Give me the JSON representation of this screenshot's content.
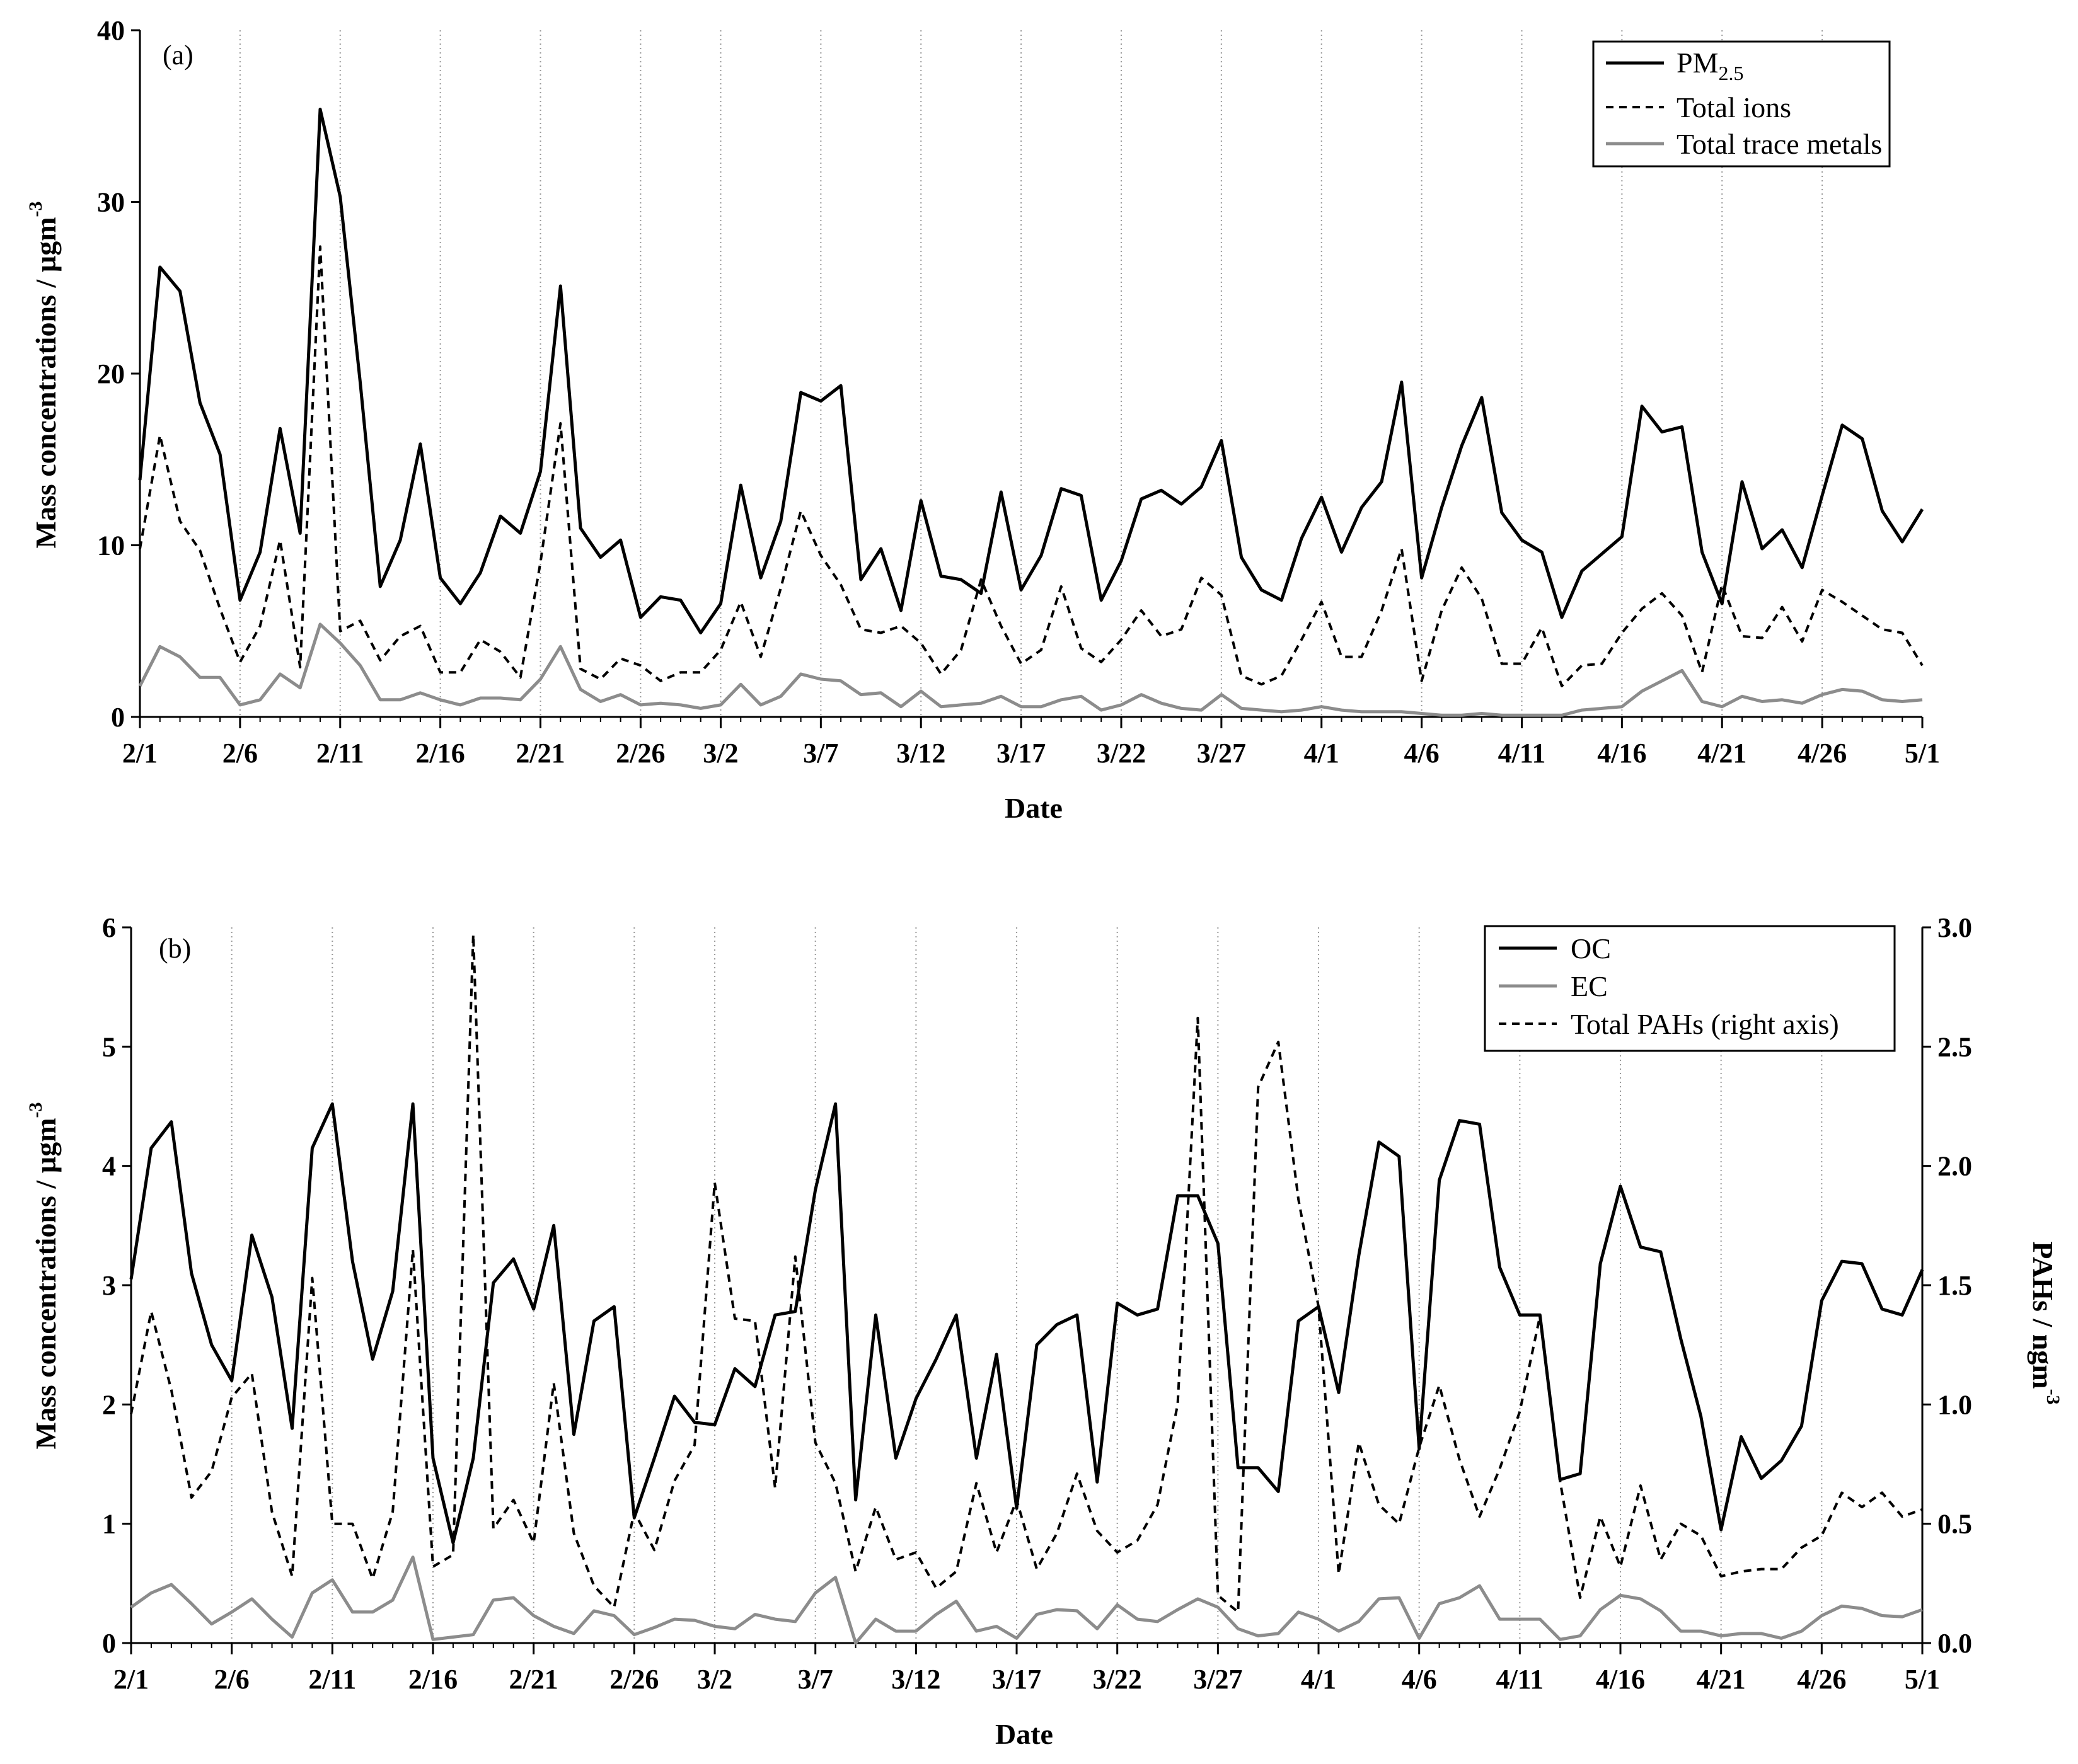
{
  "chart_data": [
    {
      "id": "a",
      "type": "line",
      "panel_label": "(a)",
      "xlabel": "Date",
      "ylabel": "Mass concentrations / µgm",
      "ylabel_superscript": "-3",
      "ylim": [
        0,
        40
      ],
      "yticks": [
        0,
        10,
        20,
        30,
        40
      ],
      "x_start": "2/1",
      "x_end": "5/1",
      "xticks": [
        {
          "day": 0,
          "label": "2/1"
        },
        {
          "day": 5,
          "label": "2/6"
        },
        {
          "day": 10,
          "label": "2/11"
        },
        {
          "day": 15,
          "label": "2/16"
        },
        {
          "day": 20,
          "label": "2/21"
        },
        {
          "day": 25,
          "label": "2/26"
        },
        {
          "day": 29,
          "label": "3/2"
        },
        {
          "day": 34,
          "label": "3/7"
        },
        {
          "day": 39,
          "label": "3/12"
        },
        {
          "day": 44,
          "label": "3/17"
        },
        {
          "day": 49,
          "label": "3/22"
        },
        {
          "day": 54,
          "label": "3/27"
        },
        {
          "day": 59,
          "label": "4/1"
        },
        {
          "day": 64,
          "label": "4/6"
        },
        {
          "day": 69,
          "label": "4/11"
        },
        {
          "day": 74,
          "label": "4/16"
        },
        {
          "day": 79,
          "label": "4/21"
        },
        {
          "day": 84,
          "label": "4/26"
        },
        {
          "day": 89,
          "label": "5/1"
        }
      ],
      "legend_position": "top-right",
      "series": [
        {
          "name": "PM",
          "subscript": "2.5",
          "style": "solid",
          "color": "#000000",
          "values": [
            13.8,
            26.2,
            24.8,
            18.3,
            15.3,
            6.8,
            9.6,
            16.8,
            10.7,
            35.4,
            30.3,
            19.5,
            7.6,
            10.3,
            15.9,
            8.1,
            6.6,
            8.4,
            11.7,
            10.7,
            14.3,
            25.1,
            11.0,
            9.3,
            10.3,
            5.8,
            7.0,
            6.8,
            4.9,
            6.6,
            13.5,
            8.1,
            11.4,
            18.9,
            18.4,
            19.3,
            8.0,
            9.8,
            6.2,
            12.6,
            8.2,
            8.0,
            7.2,
            13.1,
            7.4,
            9.4,
            13.3,
            12.9,
            6.8,
            9.1,
            12.7,
            13.2,
            12.4,
            13.4,
            16.1,
            9.3,
            7.4,
            6.8,
            10.4,
            12.8,
            9.6,
            12.2,
            13.7,
            19.5,
            8.1,
            12.2,
            15.8,
            18.6,
            11.9,
            10.3,
            9.6,
            5.8,
            8.5,
            9.5,
            10.5,
            18.1,
            16.6,
            16.9,
            9.6,
            6.6,
            13.7,
            9.8,
            10.9,
            8.7,
            12.9,
            17.0,
            16.2,
            12.0,
            10.2,
            12.1
          ]
        },
        {
          "name": "Total ions",
          "style": "dashed",
          "color": "#000000",
          "values": [
            9.8,
            16.4,
            11.4,
            9.7,
            6.3,
            3.2,
            5.3,
            10.3,
            2.9,
            27.4,
            5.0,
            5.6,
            3.3,
            4.7,
            5.3,
            2.6,
            2.6,
            4.5,
            3.8,
            2.3,
            9.0,
            17.1,
            2.8,
            2.2,
            3.4,
            3.0,
            2.1,
            2.6,
            2.6,
            3.9,
            6.7,
            3.5,
            7.5,
            12.0,
            9.4,
            7.7,
            5.1,
            4.9,
            5.3,
            4.3,
            2.5,
            3.9,
            8.0,
            5.3,
            3.1,
            3.9,
            7.6,
            4.0,
            3.2,
            4.5,
            6.2,
            4.7,
            5.1,
            8.1,
            7.1,
            2.4,
            1.9,
            2.4,
            4.5,
            6.7,
            3.5,
            3.5,
            6.2,
            9.8,
            2.1,
            6.2,
            8.7,
            6.9,
            3.1,
            3.1,
            5.2,
            1.8,
            3.0,
            3.1,
            4.9,
            6.3,
            7.2,
            5.9,
            2.6,
            7.7,
            4.7,
            4.6,
            6.4,
            4.4,
            7.4,
            6.7,
            5.9,
            5.1,
            4.9,
            3.0
          ]
        },
        {
          "name": "Total trace metals",
          "style": "solid",
          "color": "#8c8c8c",
          "values": [
            1.8,
            4.1,
            3.5,
            2.3,
            2.3,
            0.7,
            1.0,
            2.5,
            1.7,
            5.4,
            4.3,
            3.0,
            1.0,
            1.0,
            1.4,
            1.0,
            0.7,
            1.1,
            1.1,
            1.0,
            2.2,
            4.1,
            1.6,
            0.9,
            1.3,
            0.7,
            0.8,
            0.7,
            0.5,
            0.7,
            1.9,
            0.7,
            1.2,
            2.5,
            2.2,
            2.1,
            1.3,
            1.4,
            0.6,
            1.5,
            0.6,
            0.7,
            0.8,
            1.2,
            0.6,
            0.6,
            1.0,
            1.2,
            0.4,
            0.7,
            1.3,
            0.8,
            0.5,
            0.4,
            1.3,
            0.5,
            0.4,
            0.3,
            0.4,
            0.6,
            0.4,
            0.3,
            0.3,
            0.3,
            0.2,
            0.1,
            0.1,
            0.2,
            0.1,
            0.1,
            0.1,
            0.1,
            0.4,
            0.5,
            0.6,
            1.5,
            2.1,
            2.7,
            0.9,
            0.6,
            1.2,
            0.9,
            1.0,
            0.8,
            1.3,
            1.6,
            1.5,
            1.0,
            0.9,
            1.0
          ]
        }
      ]
    },
    {
      "id": "b",
      "type": "line",
      "panel_label": "(b)",
      "xlabel": "Date",
      "ylabel": "Mass concentrations / µgm",
      "ylabel_superscript": "-3",
      "ylim": [
        0,
        6
      ],
      "yticks": [
        0,
        1,
        2,
        3,
        4,
        5,
        6
      ],
      "y2label": "PAHs / ngm",
      "y2label_superscript": "-3",
      "y2lim": [
        0,
        3.0
      ],
      "y2ticks": [
        "0.0",
        "0.5",
        "1.0",
        "1.5",
        "2.0",
        "2.5",
        "3.0"
      ],
      "x_start": "2/1",
      "x_end": "5/1",
      "xticks": [
        {
          "day": 0,
          "label": "2/1"
        },
        {
          "day": 5,
          "label": "2/6"
        },
        {
          "day": 10,
          "label": "2/11"
        },
        {
          "day": 15,
          "label": "2/16"
        },
        {
          "day": 20,
          "label": "2/21"
        },
        {
          "day": 25,
          "label": "2/26"
        },
        {
          "day": 29,
          "label": "3/2"
        },
        {
          "day": 34,
          "label": "3/7"
        },
        {
          "day": 39,
          "label": "3/12"
        },
        {
          "day": 44,
          "label": "3/17"
        },
        {
          "day": 49,
          "label": "3/22"
        },
        {
          "day": 54,
          "label": "3/27"
        },
        {
          "day": 59,
          "label": "4/1"
        },
        {
          "day": 64,
          "label": "4/6"
        },
        {
          "day": 69,
          "label": "4/11"
        },
        {
          "day": 74,
          "label": "4/16"
        },
        {
          "day": 79,
          "label": "4/21"
        },
        {
          "day": 84,
          "label": "4/26"
        },
        {
          "day": 89,
          "label": "5/1"
        }
      ],
      "legend_position": "top-right",
      "series": [
        {
          "name": "OC",
          "style": "solid",
          "color": "#000000",
          "axis": "left",
          "values": [
            3.05,
            4.15,
            4.37,
            3.1,
            2.5,
            2.2,
            3.42,
            2.9,
            1.8,
            4.15,
            4.52,
            3.2,
            2.38,
            2.95,
            4.52,
            1.55,
            0.84,
            1.55,
            3.02,
            3.22,
            2.8,
            3.5,
            1.75,
            2.7,
            2.82,
            1.05,
            1.55,
            2.07,
            1.85,
            1.83,
            2.3,
            2.15,
            2.75,
            2.78,
            3.8,
            4.52,
            1.2,
            2.75,
            1.55,
            2.05,
            2.38,
            2.75,
            1.55,
            2.42,
            1.13,
            2.5,
            2.67,
            2.75,
            1.35,
            2.85,
            2.75,
            2.8,
            3.75,
            3.75,
            3.35,
            1.47,
            1.47,
            1.27,
            2.7,
            2.82,
            2.1,
            3.25,
            4.2,
            4.08,
            1.63,
            3.88,
            4.38,
            4.35,
            3.15,
            2.75,
            2.75,
            1.37,
            1.42,
            3.18,
            3.83,
            3.32,
            3.28,
            2.55,
            1.9,
            0.95,
            1.73,
            1.38,
            1.53,
            1.82,
            2.87,
            3.2,
            3.18,
            2.8,
            2.75,
            3.13
          ]
        },
        {
          "name": "EC",
          "style": "solid",
          "color": "#8c8c8c",
          "axis": "left",
          "values": [
            0.3,
            0.42,
            0.49,
            0.33,
            0.16,
            0.26,
            0.37,
            0.2,
            0.05,
            0.42,
            0.53,
            0.26,
            0.26,
            0.36,
            0.72,
            0.03,
            0.05,
            0.07,
            0.36,
            0.38,
            0.23,
            0.14,
            0.08,
            0.27,
            0.23,
            0.07,
            0.13,
            0.2,
            0.19,
            0.14,
            0.12,
            0.24,
            0.2,
            0.18,
            0.42,
            0.55,
            0.0,
            0.2,
            0.1,
            0.1,
            0.24,
            0.35,
            0.1,
            0.14,
            0.04,
            0.24,
            0.28,
            0.27,
            0.12,
            0.32,
            0.2,
            0.18,
            0.28,
            0.37,
            0.3,
            0.12,
            0.06,
            0.08,
            0.26,
            0.2,
            0.1,
            0.18,
            0.37,
            0.38,
            0.04,
            0.33,
            0.38,
            0.48,
            0.2,
            0.2,
            0.2,
            0.03,
            0.06,
            0.28,
            0.4,
            0.37,
            0.27,
            0.1,
            0.1,
            0.06,
            0.08,
            0.08,
            0.04,
            0.1,
            0.23,
            0.31,
            0.29,
            0.23,
            0.22,
            0.28
          ]
        },
        {
          "name": "Total PAHs (right axis)",
          "style": "dashed",
          "color": "#000000",
          "axis": "right",
          "values": [
            0.96,
            1.39,
            1.06,
            0.61,
            0.72,
            1.03,
            1.13,
            0.55,
            0.28,
            1.53,
            0.5,
            0.5,
            0.27,
            0.55,
            1.65,
            0.32,
            0.37,
            2.97,
            0.48,
            0.6,
            0.42,
            1.09,
            0.46,
            0.24,
            0.15,
            0.55,
            0.39,
            0.68,
            0.83,
            1.93,
            1.36,
            1.35,
            0.65,
            1.62,
            0.84,
            0.67,
            0.3,
            0.57,
            0.35,
            0.38,
            0.23,
            0.3,
            0.67,
            0.38,
            0.6,
            0.31,
            0.46,
            0.71,
            0.47,
            0.38,
            0.43,
            0.58,
            1.0,
            2.62,
            0.2,
            0.13,
            2.33,
            2.52,
            1.86,
            1.41,
            0.29,
            0.84,
            0.58,
            0.5,
            0.82,
            1.08,
            0.77,
            0.53,
            0.73,
            0.97,
            1.37,
            0.68,
            0.19,
            0.53,
            0.32,
            0.66,
            0.35,
            0.5,
            0.45,
            0.28,
            0.3,
            0.31,
            0.31,
            0.4,
            0.45,
            0.63,
            0.57,
            0.63,
            0.53,
            0.56
          ]
        }
      ]
    }
  ]
}
